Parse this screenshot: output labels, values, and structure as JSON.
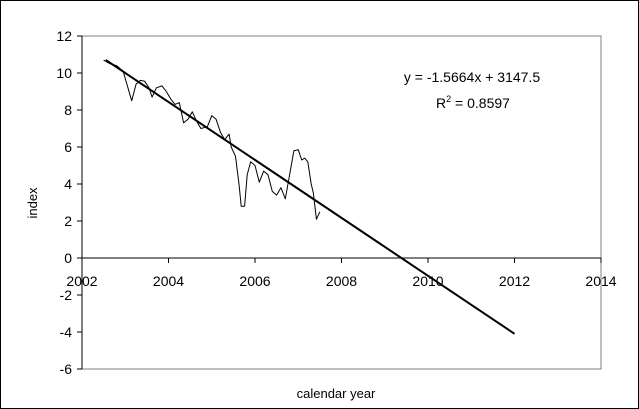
{
  "chart_data": {
    "type": "line",
    "xlabel": "calendar year",
    "ylabel": "index",
    "xlim": [
      2002,
      2014
    ],
    "ylim": [
      -6,
      12
    ],
    "x_ticks": [
      "2002",
      "2004",
      "2006",
      "2008",
      "2010",
      "2012",
      "2014"
    ],
    "y_ticks": [
      "12",
      "10",
      "8",
      "6",
      "4",
      "2",
      "0",
      "-2",
      "-4",
      "-6"
    ],
    "grid": false,
    "legend": "none",
    "annotations": {
      "equation": "y = -1.5664x + 3147.5",
      "r2_prefix": "R",
      "r2_exp": "2",
      "r2_value": " = 0.8597"
    },
    "series": [
      {
        "style": "thin-line",
        "color": "#000000",
        "points": [
          [
            2002.5,
            10.7
          ],
          [
            2002.65,
            10.5
          ],
          [
            2002.8,
            10.4
          ],
          [
            2002.95,
            10.1
          ],
          [
            2003.05,
            9.3
          ],
          [
            2003.15,
            8.5
          ],
          [
            2003.25,
            9.4
          ],
          [
            2003.35,
            9.6
          ],
          [
            2003.45,
            9.55
          ],
          [
            2003.55,
            9.2
          ],
          [
            2003.62,
            8.7
          ],
          [
            2003.72,
            9.2
          ],
          [
            2003.85,
            9.3
          ],
          [
            2003.95,
            9.0
          ],
          [
            2004.05,
            8.6
          ],
          [
            2004.15,
            8.3
          ],
          [
            2004.25,
            8.4
          ],
          [
            2004.35,
            7.3
          ],
          [
            2004.45,
            7.5
          ],
          [
            2004.55,
            7.9
          ],
          [
            2004.65,
            7.4
          ],
          [
            2004.75,
            7.0
          ],
          [
            2004.9,
            7.1
          ],
          [
            2005.0,
            7.7
          ],
          [
            2005.1,
            7.5
          ],
          [
            2005.2,
            6.8
          ],
          [
            2005.3,
            6.4
          ],
          [
            2005.4,
            6.7
          ],
          [
            2005.45,
            6.0
          ],
          [
            2005.55,
            5.5
          ],
          [
            2005.63,
            4.0
          ],
          [
            2005.68,
            2.8
          ],
          [
            2005.76,
            2.8
          ],
          [
            2005.82,
            4.5
          ],
          [
            2005.9,
            5.2
          ],
          [
            2006.0,
            5.0
          ],
          [
            2006.1,
            4.1
          ],
          [
            2006.2,
            4.7
          ],
          [
            2006.3,
            4.5
          ],
          [
            2006.4,
            3.6
          ],
          [
            2006.5,
            3.4
          ],
          [
            2006.6,
            3.8
          ],
          [
            2006.7,
            3.2
          ],
          [
            2006.8,
            4.5
          ],
          [
            2006.9,
            5.8
          ],
          [
            2007.0,
            5.85
          ],
          [
            2007.08,
            5.3
          ],
          [
            2007.15,
            5.4
          ],
          [
            2007.22,
            5.2
          ],
          [
            2007.3,
            4.0
          ],
          [
            2007.35,
            3.5
          ],
          [
            2007.42,
            2.1
          ],
          [
            2007.5,
            2.5
          ]
        ]
      },
      {
        "name": "trend",
        "style": "linear-trendline",
        "color": "#000000",
        "slope": -1.5664,
        "intercept": 3147.5,
        "x_range": [
          2002.55,
          2012
        ]
      }
    ]
  }
}
